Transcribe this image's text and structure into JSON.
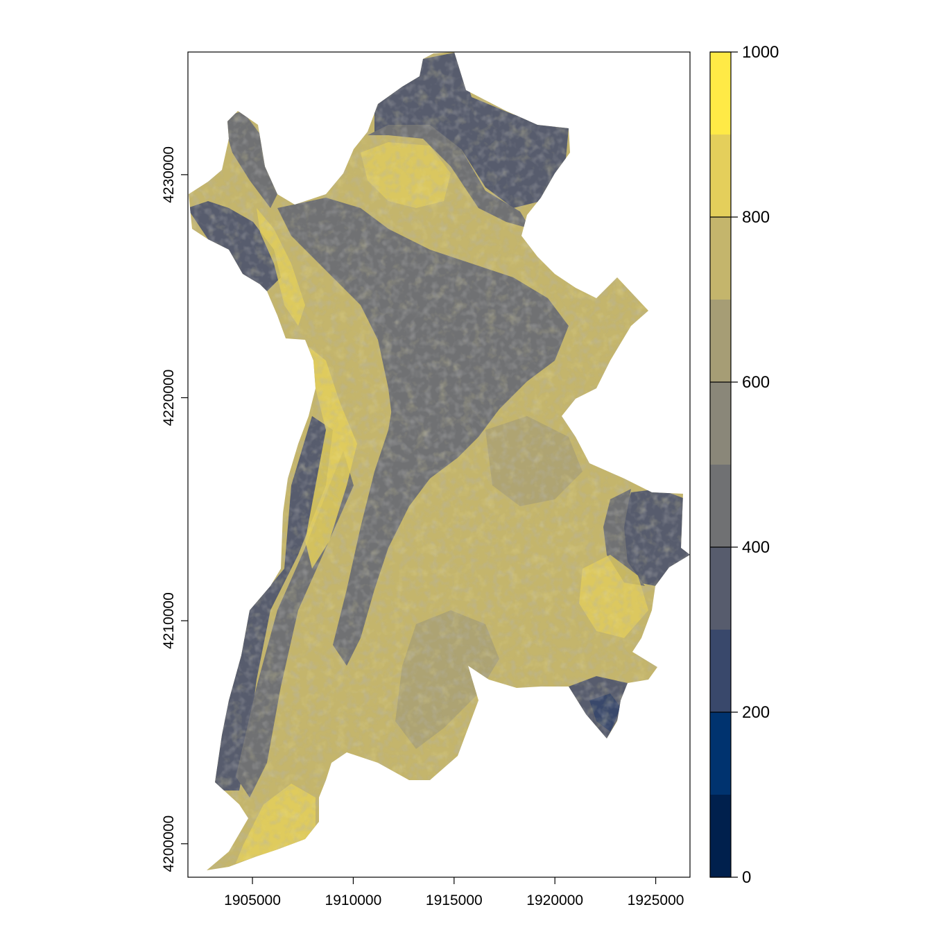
{
  "map": {
    "x_ticks": [
      "1905000",
      "1910000",
      "1915000",
      "1920000",
      "1925000"
    ],
    "y_ticks": [
      "4200000",
      "4210000",
      "4220000",
      "4230000"
    ],
    "x_range": [
      1901800,
      1926700
    ],
    "y_range": [
      4198500,
      4235500
    ],
    "palette_name": "cividis",
    "legend": {
      "labels": [
        "0",
        "200",
        "400",
        "600",
        "800",
        "1000"
      ],
      "range": [
        0,
        1000
      ],
      "classes": [
        {
          "from": 0,
          "to": 100,
          "color": "#00204d"
        },
        {
          "from": 100,
          "to": 200,
          "color": "#00336f"
        },
        {
          "from": 200,
          "to": 300,
          "color": "#39486b"
        },
        {
          "from": 300,
          "to": 400,
          "color": "#575c6d"
        },
        {
          "from": 400,
          "to": 500,
          "color": "#707173"
        },
        {
          "from": 500,
          "to": 600,
          "color": "#8a8779"
        },
        {
          "from": 600,
          "to": 700,
          "color": "#a69d75"
        },
        {
          "from": 700,
          "to": 800,
          "color": "#c4b56c"
        },
        {
          "from": 800,
          "to": 900,
          "color": "#e4cf5b"
        },
        {
          "from": 900,
          "to": 1000,
          "color": "#ffea46"
        }
      ]
    }
  }
}
